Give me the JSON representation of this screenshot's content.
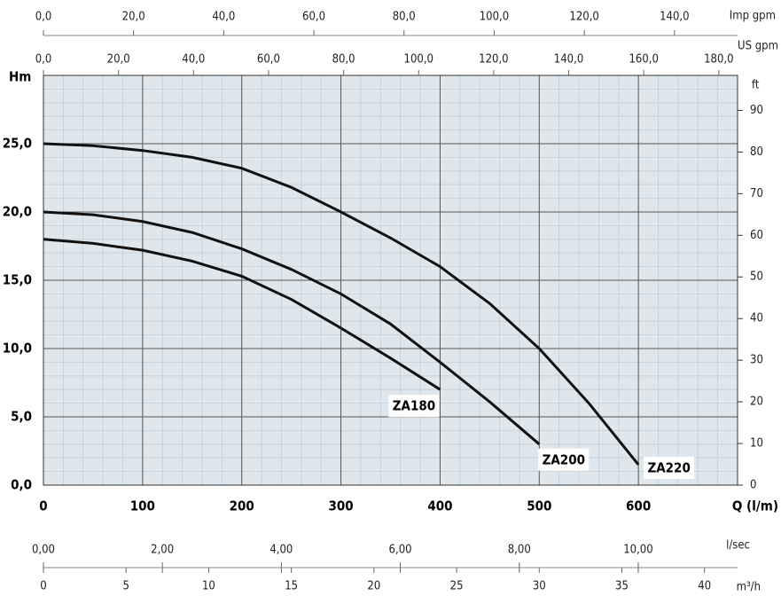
{
  "chart_data": {
    "type": "line",
    "x_label": "Q (l/m)",
    "y_label": "Hm",
    "y2_label": "ft",
    "xlim": [
      0,
      700
    ],
    "xticks": [
      0,
      100,
      200,
      300,
      400,
      500,
      600
    ],
    "ylim": [
      0,
      30
    ],
    "yticks": [
      {
        "value": 0,
        "label": "0,0"
      },
      {
        "value": 5,
        "label": "5,0"
      },
      {
        "value": 10,
        "label": "10,0"
      },
      {
        "value": 15,
        "label": "15,0"
      },
      {
        "value": 20,
        "label": "20,0"
      },
      {
        "value": 25,
        "label": "25,0"
      }
    ],
    "y2lim": [
      0,
      98.4
    ],
    "y2ticks": [
      0,
      10,
      20,
      30,
      40,
      50,
      60,
      70,
      80,
      90
    ],
    "grid": true,
    "minor_grid": true,
    "series": [
      {
        "name": "ZA180",
        "color": "#111111",
        "x": [
          0,
          50,
          100,
          150,
          200,
          250,
          300,
          350,
          400
        ],
        "values": [
          18,
          17.7,
          17.2,
          16.4,
          15.3,
          13.6,
          11.5,
          9.3,
          7
        ]
      },
      {
        "name": "ZA200",
        "color": "#111111",
        "x": [
          0,
          50,
          100,
          150,
          200,
          250,
          300,
          350,
          400,
          450,
          500
        ],
        "values": [
          20,
          19.8,
          19.3,
          18.5,
          17.3,
          15.8,
          14,
          11.8,
          9,
          6.1,
          3
        ]
      },
      {
        "name": "ZA220",
        "color": "#111111",
        "x": [
          0,
          50,
          100,
          150,
          200,
          250,
          300,
          350,
          400,
          450,
          500,
          550,
          600
        ],
        "values": [
          25,
          24.85,
          24.5,
          24,
          23.2,
          21.8,
          20,
          18.1,
          16,
          13.3,
          10,
          6,
          1.5
        ]
      }
    ],
    "extra_axes": [
      {
        "label": "Imp gpm",
        "position": "top",
        "lim": [
          0,
          154
        ],
        "ticks": [
          {
            "value": 0,
            "label": "0,0"
          },
          {
            "value": 20,
            "label": "20,0"
          },
          {
            "value": 40,
            "label": "40,0"
          },
          {
            "value": 60,
            "label": "60,0"
          },
          {
            "value": 80,
            "label": "80,0"
          },
          {
            "value": 100,
            "label": "100,0"
          },
          {
            "value": 120,
            "label": "120,0"
          },
          {
            "value": 140,
            "label": "140,0"
          }
        ]
      },
      {
        "label": "US gpm",
        "position": "top",
        "lim": [
          0,
          185
        ],
        "ticks": [
          {
            "value": 0,
            "label": "0,0"
          },
          {
            "value": 20,
            "label": "20,0"
          },
          {
            "value": 40,
            "label": "40,0"
          },
          {
            "value": 60,
            "label": "60,0"
          },
          {
            "value": 80,
            "label": "80,0"
          },
          {
            "value": 100,
            "label": "100,0"
          },
          {
            "value": 120,
            "label": "120,0"
          },
          {
            "value": 140,
            "label": "140,0"
          },
          {
            "value": 160,
            "label": "160,0"
          },
          {
            "value": 180,
            "label": "180,0"
          }
        ]
      },
      {
        "label": "l/sec",
        "position": "bottom",
        "lim": [
          0,
          11.67
        ],
        "ticks": [
          {
            "value": 0,
            "label": "0,00"
          },
          {
            "value": 2,
            "label": "2,00"
          },
          {
            "value": 4,
            "label": "4,00"
          },
          {
            "value": 6,
            "label": "6,00"
          },
          {
            "value": 8,
            "label": "8,00"
          },
          {
            "value": 10,
            "label": "10,00"
          }
        ]
      },
      {
        "label": "m³/h",
        "position": "bottom",
        "lim": [
          0,
          42
        ],
        "ticks": [
          0,
          5,
          10,
          15,
          20,
          25,
          30,
          35,
          40
        ]
      }
    ]
  }
}
